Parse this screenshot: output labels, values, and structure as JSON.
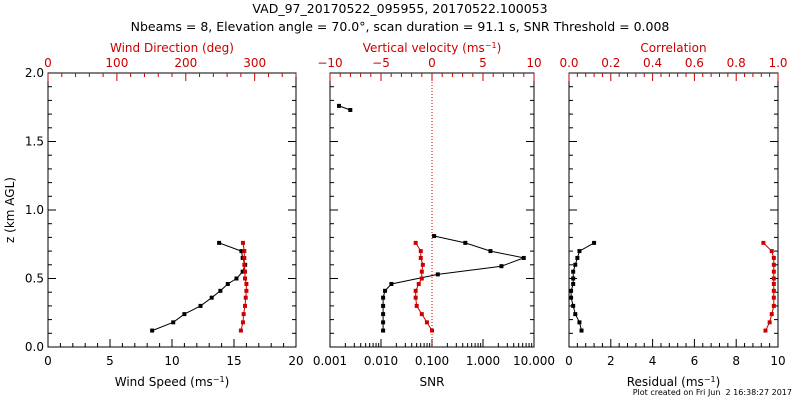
{
  "chart_data": {
    "title_line1": "VAD_97_20170522_095955, 20170522.100053",
    "title_line2": "Nbeams = 8, Elevation angle = 70.0°, scan duration = 91.1 s, SNR Threshold = 0.008",
    "footer": "Plot created on Fri Jun  2 16:38:27 2017",
    "ylabel": "z (km AGL)",
    "yticks": [
      "0.0",
      "0.5",
      "1.0",
      "1.5",
      "2.0"
    ],
    "ylim": [
      0,
      2
    ],
    "colors": {
      "primary": "#000000",
      "secondary": "#cc0000"
    },
    "panels": [
      {
        "type": "line",
        "bottom": {
          "label": "Wind Speed",
          "unit": "(ms",
          "unit_sup": "−1",
          "unit_end": ")",
          "ticks": [
            "0",
            "5",
            "10",
            "15",
            "20"
          ],
          "range": [
            0,
            20
          ],
          "scale": "linear"
        },
        "top": {
          "label": "Wind Direction (deg)",
          "unit": "",
          "unit_sup": "",
          "unit_end": "",
          "ticks": [
            "0",
            "100",
            "200",
            "300"
          ],
          "range": [
            0,
            360
          ],
          "scale": "linear"
        },
        "series": [
          {
            "axis": "bottom",
            "color": "#000000",
            "x": [
              8.4,
              10.1,
              11.0,
              12.3,
              13.2,
              13.9,
              14.5,
              15.2,
              15.7,
              15.9,
              15.7,
              15.6,
              13.8
            ],
            "y": [
              0.12,
              0.18,
              0.24,
              0.3,
              0.36,
              0.41,
              0.46,
              0.5,
              0.55,
              0.6,
              0.65,
              0.7,
              0.76
            ]
          },
          {
            "axis": "top",
            "color": "#cc0000",
            "x": [
              280,
              283,
              284,
              286,
              287,
              288,
              288,
              286,
              286,
              285,
              285,
              285,
              283
            ],
            "y": [
              0.12,
              0.18,
              0.24,
              0.3,
              0.36,
              0.41,
              0.46,
              0.5,
              0.55,
              0.6,
              0.65,
              0.7,
              0.76
            ]
          }
        ]
      },
      {
        "type": "line",
        "bottom": {
          "label": "SNR",
          "unit": "",
          "unit_sup": "",
          "unit_end": "",
          "ticks": [
            "0.001",
            "0.010",
            "0.100",
            "1.000",
            "10.000"
          ],
          "range": [
            0.001,
            10
          ],
          "scale": "log"
        },
        "top": {
          "label": "Vertical velocity (ms",
          "unit": "",
          "unit_sup": "−1",
          "unit_end": ")",
          "ticks": [
            "−10",
            "−5",
            "0",
            "5",
            "10"
          ],
          "range": [
            -10,
            10
          ],
          "scale": "linear"
        },
        "zero_line": true,
        "series": [
          {
            "axis": "bottom",
            "color": "#000000",
            "x": [
              0.011,
              0.011,
              0.011,
              0.011,
              0.011,
              0.012,
              0.016,
              0.13,
              2.3,
              6.3,
              1.4,
              0.45,
              0.11
            ],
            "y": [
              0.12,
              0.18,
              0.24,
              0.3,
              0.36,
              0.41,
              0.46,
              0.53,
              0.59,
              0.65,
              0.7,
              0.76,
              0.81
            ]
          },
          {
            "axis": "bottom",
            "color": "#000000",
            "x": [
              0.0015,
              0.0025
            ],
            "y": [
              1.76,
              1.73
            ]
          },
          {
            "axis": "top",
            "color": "#cc0000",
            "x": [
              0.0,
              -0.5,
              -1.0,
              -1.5,
              -1.6,
              -1.6,
              -1.3,
              -1.0,
              -1.0,
              -0.9,
              -1.1,
              -1.1,
              -1.6
            ],
            "y": [
              0.12,
              0.18,
              0.24,
              0.3,
              0.36,
              0.41,
              0.46,
              0.5,
              0.55,
              0.6,
              0.65,
              0.7,
              0.76
            ]
          }
        ]
      },
      {
        "type": "line",
        "bottom": {
          "label": "Residual",
          "unit": "(ms",
          "unit_sup": "−1",
          "unit_end": ")",
          "ticks": [
            "0",
            "2",
            "4",
            "6",
            "8",
            "10"
          ],
          "range": [
            0,
            10
          ],
          "scale": "linear"
        },
        "top": {
          "label": "Correlation",
          "unit": "",
          "unit_sup": "",
          "unit_end": "",
          "ticks": [
            "0.0",
            "0.2",
            "0.4",
            "0.6",
            "0.8",
            "1.0"
          ],
          "range": [
            0,
            1
          ],
          "scale": "linear"
        },
        "series": [
          {
            "axis": "bottom",
            "color": "#000000",
            "x": [
              0.6,
              0.5,
              0.3,
              0.2,
              0.1,
              0.1,
              0.2,
              0.2,
              0.2,
              0.3,
              0.4,
              0.5,
              1.2
            ],
            "y": [
              0.12,
              0.18,
              0.24,
              0.3,
              0.36,
              0.41,
              0.46,
              0.5,
              0.55,
              0.6,
              0.65,
              0.7,
              0.76
            ]
          },
          {
            "axis": "top",
            "color": "#cc0000",
            "x": [
              0.94,
              0.96,
              0.97,
              0.98,
              0.98,
              0.98,
              0.98,
              0.98,
              0.98,
              0.98,
              0.98,
              0.97,
              0.93
            ],
            "y": [
              0.12,
              0.18,
              0.24,
              0.3,
              0.36,
              0.41,
              0.46,
              0.5,
              0.55,
              0.6,
              0.65,
              0.7,
              0.76
            ]
          }
        ]
      }
    ]
  }
}
